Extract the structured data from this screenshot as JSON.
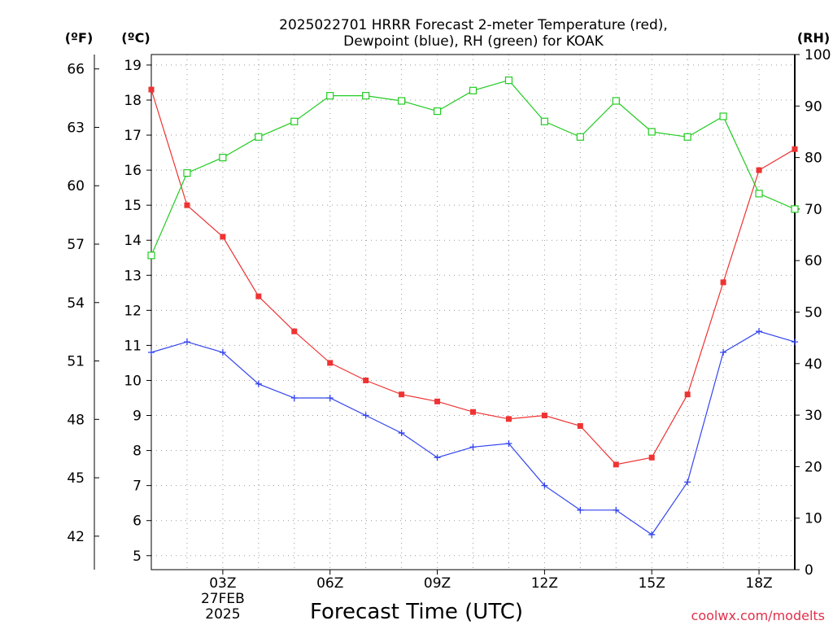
{
  "page": {
    "title_line1": "2025022701 HRRR Forecast 2-meter Temperature (red),",
    "title_line2": "Dewpoint (blue), RH (green) for KOAK",
    "credit": "coolwx.com/modelts"
  },
  "chart_data": {
    "type": "line",
    "title": "2025022701 HRRR Forecast 2-meter Temperature (red), Dewpoint (blue), RH (green) for KOAK",
    "xlabel": "Forecast Time (UTC)",
    "x_hours": [
      1,
      2,
      3,
      4,
      5,
      6,
      7,
      8,
      9,
      10,
      11,
      12,
      13,
      14,
      15,
      16,
      17,
      18,
      19
    ],
    "xlim_hours": [
      1,
      19
    ],
    "x_ticks": [
      {
        "hour": 3,
        "label": "03Z"
      },
      {
        "hour": 6,
        "label": "06Z"
      },
      {
        "hour": 9,
        "label": "09Z"
      },
      {
        "hour": 12,
        "label": "12Z"
      },
      {
        "hour": 15,
        "label": "15Z"
      },
      {
        "hour": 18,
        "label": "18Z"
      }
    ],
    "date_label": {
      "hour": 3,
      "line1": "27FEB",
      "line2": "2025"
    },
    "left_axis_c": {
      "unit": "(ºC)",
      "ylim": [
        4.6,
        19.3
      ],
      "ticks": [
        5,
        6,
        7,
        8,
        9,
        10,
        11,
        12,
        13,
        14,
        15,
        16,
        17,
        18,
        19
      ]
    },
    "left_axis_f": {
      "unit": "(ºF)",
      "ticks": [
        42,
        45,
        48,
        51,
        54,
        57,
        60,
        63,
        66
      ]
    },
    "right_axis_rh": {
      "unit": "(RH)",
      "ylim": [
        0,
        100
      ],
      "ticks": [
        0,
        10,
        20,
        30,
        40,
        50,
        60,
        70,
        80,
        90,
        100
      ]
    },
    "grid": true,
    "series": [
      {
        "name": "Temperature",
        "axis": "C",
        "color": "#ee3333",
        "marker": "filled-square",
        "values": [
          18.3,
          15.0,
          14.1,
          12.4,
          11.4,
          10.5,
          10.0,
          9.6,
          9.4,
          9.1,
          8.9,
          9.0,
          8.7,
          7.6,
          7.8,
          9.6,
          12.8,
          16.0,
          16.6
        ]
      },
      {
        "name": "Dewpoint",
        "axis": "C",
        "color": "#3344ee",
        "marker": "plus",
        "values": [
          10.8,
          11.1,
          10.8,
          9.9,
          9.5,
          9.5,
          9.0,
          8.5,
          7.8,
          8.1,
          8.2,
          7.0,
          6.3,
          6.3,
          5.6,
          7.1,
          10.8,
          11.4,
          11.1
        ]
      },
      {
        "name": "RH",
        "axis": "RH",
        "color": "#22cc22",
        "marker": "open-square",
        "values": [
          61,
          77,
          80,
          84,
          87,
          92,
          92,
          91,
          89,
          93,
          95,
          87,
          84,
          91,
          85,
          84,
          88,
          73,
          70
        ]
      }
    ]
  }
}
